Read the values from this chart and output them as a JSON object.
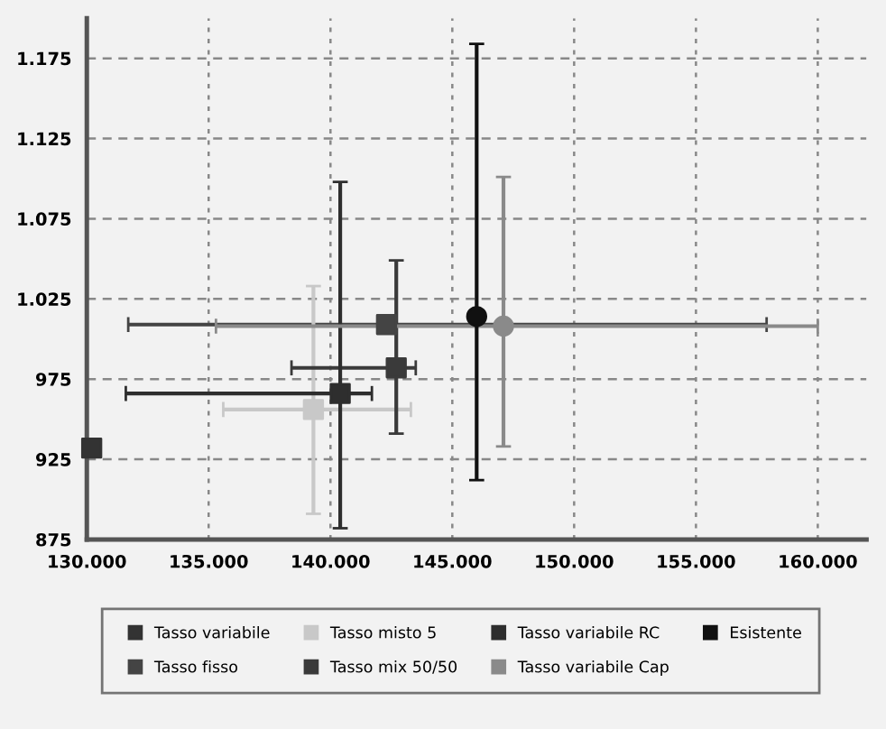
{
  "chart_data": {
    "type": "scatter",
    "xlim": [
      130000,
      162000
    ],
    "ylim": [
      875,
      1200
    ],
    "xticks": [
      {
        "value": 130000,
        "label": "130.000"
      },
      {
        "value": 135000,
        "label": "135.000"
      },
      {
        "value": 140000,
        "label": "140.000"
      },
      {
        "value": 145000,
        "label": "145.000"
      },
      {
        "value": 150000,
        "label": "150.000"
      },
      {
        "value": 155000,
        "label": "155.000"
      },
      {
        "value": 160000,
        "label": "160.000"
      }
    ],
    "yticks": [
      875,
      925,
      975,
      {
        "value": 1025,
        "label": "1.025"
      },
      {
        "value": 1075,
        "label": "1.075"
      },
      {
        "value": 1125,
        "label": "1.125"
      },
      {
        "value": 1175,
        "label": "1.175"
      }
    ],
    "grid": true,
    "legend": "bottom",
    "series": [
      {
        "name": "Tasso variabile",
        "color": "#333333",
        "marker": "square",
        "x": [
          130200
        ],
        "values": [
          932
        ]
      },
      {
        "name": "Tasso fisso",
        "color": "#444444",
        "marker": "square",
        "x": [
          142300
        ],
        "values": [
          1009
        ],
        "xerrors": [
          [
            131700,
            157900
          ]
        ]
      },
      {
        "name": "Tasso misto 5",
        "color": "#c8c8c8",
        "marker": "square",
        "x": [
          139300
        ],
        "values": [
          956
        ],
        "errors": [
          [
            891,
            1033
          ]
        ],
        "xerrors": [
          [
            135600,
            143300
          ]
        ]
      },
      {
        "name": "Tasso mix 50/50",
        "color": "#3a3a3a",
        "marker": "square",
        "x": [
          142700
        ],
        "values": [
          982
        ],
        "errors": [
          [
            941,
            1049
          ]
        ],
        "xerrors": [
          [
            138400,
            143500
          ]
        ]
      },
      {
        "name": "Tasso variabile RC",
        "color": "#2e2e2e",
        "marker": "square",
        "x": [
          140400
        ],
        "values": [
          966
        ],
        "errors": [
          [
            882,
            1098
          ]
        ],
        "xerrors": [
          [
            131600,
            141700
          ]
        ]
      },
      {
        "name": "Tasso variabile Cap",
        "color": "#8a8a8a",
        "marker": "circle",
        "x": [
          147100
        ],
        "values": [
          1008
        ],
        "errors": [
          [
            933,
            1101
          ]
        ],
        "xerrors": [
          [
            135300,
            160000
          ]
        ]
      },
      {
        "name": "Esistente",
        "color": "#111111",
        "marker": "circle",
        "x": [
          146000
        ],
        "values": [
          1014
        ],
        "errors": [
          [
            912,
            1184
          ]
        ]
      }
    ]
  }
}
